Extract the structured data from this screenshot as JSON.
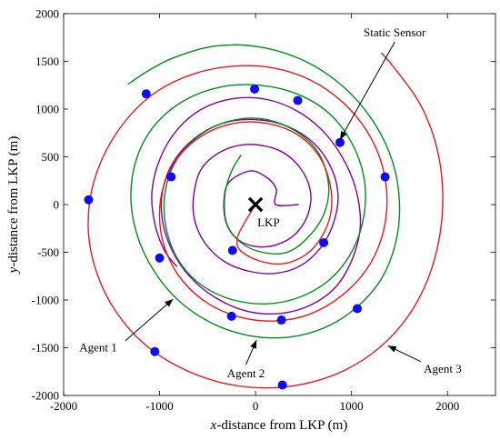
{
  "chart_data": {
    "type": "line",
    "title": "",
    "xlabel": {
      "var": "x",
      "rest": "-distance from LKP (m)"
    },
    "ylabel": {
      "var": "y",
      "rest": "-distance from LKP (m)"
    },
    "xlim": [
      -2000,
      2500
    ],
    "ylim": [
      -2000,
      2000
    ],
    "xticks": [
      -2000,
      -1000,
      0,
      1000,
      2000
    ],
    "yticks": [
      -2000,
      -1500,
      -1000,
      -500,
      0,
      500,
      1000,
      1500,
      2000
    ],
    "grid": false,
    "colors": {
      "agent1": "#7f00a0",
      "agent2": "#008c1e",
      "agent3": "#e6191e",
      "sensor": "#0d0dee",
      "lkp": "#000000"
    },
    "series": [
      {
        "name": "Agent 1",
        "color": "#7f00a0",
        "points": [
          [
            450,
            0
          ],
          [
            210,
            0
          ],
          [
            216,
            163
          ],
          [
            108,
            290
          ],
          [
            -61,
            351
          ],
          [
            -275,
            236
          ],
          [
            -330,
            40
          ],
          [
            -303,
            -200
          ],
          [
            -183,
            -367
          ],
          [
            3,
            -440
          ],
          [
            223,
            -420
          ],
          [
            424,
            -300
          ],
          [
            550,
            -90
          ],
          [
            570,
            150
          ],
          [
            460,
            390
          ],
          [
            240,
            570
          ],
          [
            -70,
            630
          ],
          [
            -350,
            560
          ],
          [
            -560,
            380
          ],
          [
            -640,
            130
          ],
          [
            -640,
            -140
          ],
          [
            -530,
            -400
          ],
          [
            -320,
            -600
          ],
          [
            -60,
            -700
          ],
          [
            210,
            -720
          ],
          [
            470,
            -640
          ],
          [
            680,
            -450
          ],
          [
            810,
            -200
          ],
          [
            860,
            90
          ],
          [
            790,
            380
          ],
          [
            610,
            640
          ],
          [
            330,
            820
          ],
          [
            -10,
            890
          ],
          [
            -350,
            850
          ],
          [
            -640,
            690
          ],
          [
            -860,
            440
          ],
          [
            -970,
            140
          ],
          [
            -970,
            -170
          ],
          [
            -870,
            -480
          ],
          [
            -680,
            -760
          ],
          [
            -410,
            -980
          ],
          [
            -80,
            -1120
          ],
          [
            270,
            -1140
          ],
          [
            580,
            -1050
          ],
          [
            830,
            -870
          ],
          [
            1000,
            -590
          ],
          [
            1090,
            -250
          ],
          [
            1060,
            100
          ],
          [
            940,
            430
          ],
          [
            730,
            740
          ],
          [
            450,
            970
          ],
          [
            120,
            1100
          ],
          [
            -230,
            1110
          ],
          [
            -560,
            1000
          ],
          [
            -820,
            780
          ],
          [
            -1000,
            470
          ],
          [
            -1080,
            130
          ],
          [
            -1050,
            -200
          ],
          [
            -950,
            -480
          ],
          [
            -820,
            -650
          ]
        ]
      },
      {
        "name": "Agent 2",
        "color": "#008c1e",
        "points": [
          [
            -150,
            520
          ],
          [
            -250,
            350
          ],
          [
            -320,
            100
          ],
          [
            -300,
            -200
          ],
          [
            -150,
            -400
          ],
          [
            70,
            -500
          ],
          [
            330,
            -500
          ],
          [
            560,
            -330
          ],
          [
            720,
            -80
          ],
          [
            760,
            220
          ],
          [
            650,
            550
          ],
          [
            400,
            780
          ],
          [
            50,
            900
          ],
          [
            -320,
            860
          ],
          [
            -640,
            680
          ],
          [
            -860,
            400
          ],
          [
            -950,
            60
          ],
          [
            -920,
            -300
          ],
          [
            -780,
            -620
          ],
          [
            -540,
            -860
          ],
          [
            -230,
            -1000
          ],
          [
            120,
            -1040
          ],
          [
            460,
            -970
          ],
          [
            780,
            -780
          ],
          [
            1010,
            -480
          ],
          [
            1130,
            -110
          ],
          [
            1130,
            280
          ],
          [
            1000,
            650
          ],
          [
            760,
            960
          ],
          [
            430,
            1160
          ],
          [
            40,
            1250
          ],
          [
            -370,
            1230
          ],
          [
            -760,
            1080
          ],
          [
            -1060,
            820
          ],
          [
            -1240,
            480
          ],
          [
            -1300,
            90
          ],
          [
            -1240,
            -300
          ],
          [
            -1080,
            -660
          ],
          [
            -820,
            -990
          ],
          [
            -480,
            -1230
          ],
          [
            -80,
            -1370
          ],
          [
            340,
            -1390
          ],
          [
            720,
            -1290
          ],
          [
            1050,
            -1080
          ],
          [
            1310,
            -780
          ],
          [
            1460,
            -400
          ],
          [
            1500,
            20
          ],
          [
            1430,
            440
          ],
          [
            1240,
            850
          ],
          [
            930,
            1220
          ],
          [
            520,
            1500
          ],
          [
            50,
            1650
          ],
          [
            -420,
            1660
          ],
          [
            -850,
            1540
          ],
          [
            -1120,
            1400
          ],
          [
            -1330,
            1260
          ]
        ]
      },
      {
        "name": "Agent 3",
        "color": "#e6191e",
        "points": [
          [
            0,
            0
          ],
          [
            -120,
            -200
          ],
          [
            -190,
            -350
          ],
          [
            -160,
            -480
          ],
          [
            40,
            -590
          ],
          [
            290,
            -620
          ],
          [
            530,
            -520
          ],
          [
            700,
            -320
          ],
          [
            790,
            -50
          ],
          [
            770,
            240
          ],
          [
            660,
            510
          ],
          [
            440,
            730
          ],
          [
            120,
            850
          ],
          [
            -230,
            850
          ],
          [
            -560,
            720
          ],
          [
            -810,
            490
          ],
          [
            -960,
            190
          ],
          [
            -1000,
            -160
          ],
          [
            -930,
            -500
          ],
          [
            -760,
            -800
          ],
          [
            -490,
            -1040
          ],
          [
            -160,
            -1180
          ],
          [
            200,
            -1220
          ],
          [
            560,
            -1150
          ],
          [
            890,
            -960
          ],
          [
            1150,
            -690
          ],
          [
            1310,
            -360
          ],
          [
            1370,
            20
          ],
          [
            1320,
            410
          ],
          [
            1160,
            770
          ],
          [
            910,
            1070
          ],
          [
            580,
            1300
          ],
          [
            190,
            1430
          ],
          [
            -230,
            1450
          ],
          [
            -640,
            1370
          ],
          [
            -1020,
            1190
          ],
          [
            -1320,
            920
          ],
          [
            -1560,
            560
          ],
          [
            -1710,
            140
          ],
          [
            -1740,
            -310
          ],
          [
            -1650,
            -730
          ],
          [
            -1450,
            -1130
          ],
          [
            -1160,
            -1460
          ],
          [
            -800,
            -1700
          ],
          [
            -380,
            -1860
          ],
          [
            60,
            -1920
          ],
          [
            500,
            -1880
          ],
          [
            920,
            -1740
          ],
          [
            1290,
            -1500
          ],
          [
            1590,
            -1170
          ],
          [
            1800,
            -770
          ],
          [
            1920,
            -320
          ],
          [
            1950,
            160
          ],
          [
            1880,
            630
          ],
          [
            1710,
            1060
          ],
          [
            1440,
            1440
          ],
          [
            1310,
            1590
          ]
        ]
      }
    ],
    "sensors": [
      [
        -1140,
        1160
      ],
      [
        -10,
        1210
      ],
      [
        440,
        1090
      ],
      [
        880,
        650
      ],
      [
        1350,
        290
      ],
      [
        -880,
        290
      ],
      [
        -1740,
        50
      ],
      [
        -240,
        -480
      ],
      [
        -1000,
        -560
      ],
      [
        710,
        -400
      ],
      [
        1060,
        -1090
      ],
      [
        -250,
        -1170
      ],
      [
        270,
        -1210
      ],
      [
        -1050,
        -1540
      ],
      [
        280,
        -1890
      ]
    ],
    "lkp": {
      "x": 0,
      "y": 0,
      "label": "LKP"
    },
    "annotations": [
      {
        "text": "Static Sensor",
        "text_x": 1450,
        "text_y": 1760,
        "tip_x": 880,
        "tip_y": 680
      },
      {
        "text": "Agent 1",
        "text_x": -1640,
        "text_y": -1540,
        "tip_x": -860,
        "tip_y": -990
      },
      {
        "text": "Agent 2",
        "text_x": -100,
        "text_y": -1810,
        "tip_x": 10,
        "tip_y": -1420
      },
      {
        "text": "Agent 3",
        "text_x": 1950,
        "text_y": -1760,
        "tip_x": 1380,
        "tip_y": -1480
      }
    ]
  }
}
